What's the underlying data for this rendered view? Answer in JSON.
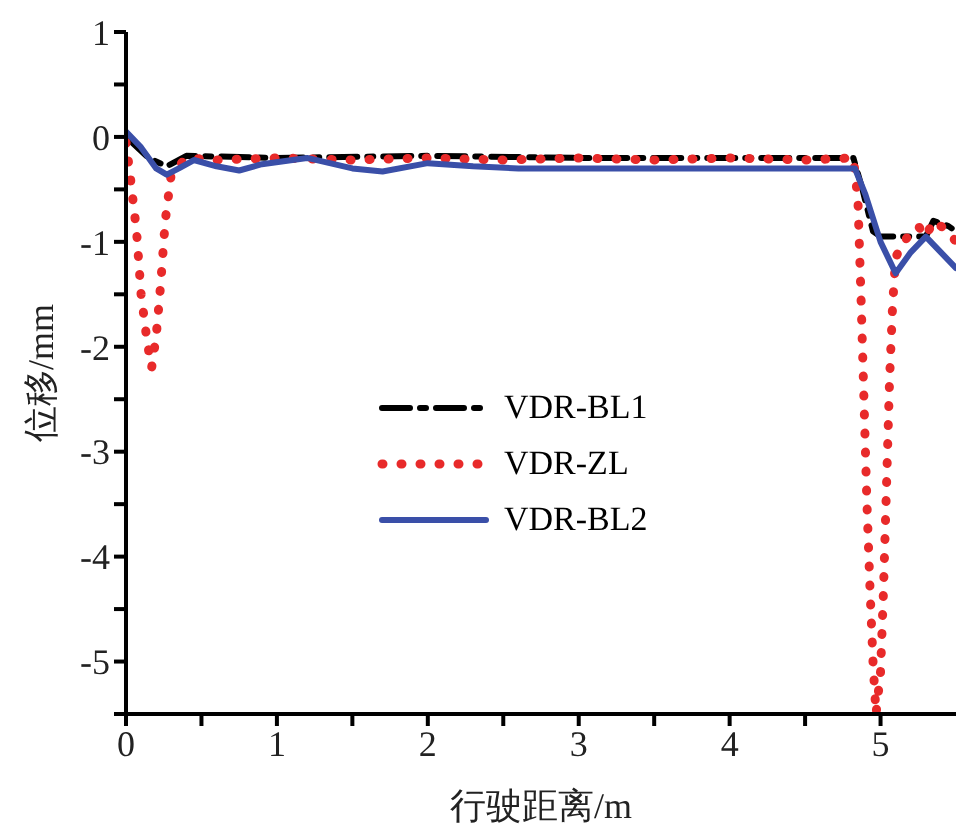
{
  "chart_data": {
    "type": "line",
    "xlabel": "行驶距离/m",
    "ylabel": "位移/mm",
    "xlim": [
      0,
      5.5
    ],
    "xticks": [
      0,
      {
        "value": 0.5,
        "label": null
      },
      1,
      {
        "value": 1.5,
        "label": null
      },
      2,
      {
        "value": 2.5,
        "label": null
      },
      3,
      {
        "value": 3.5,
        "label": null
      },
      4,
      {
        "value": 4.5,
        "label": null
      },
      5
    ],
    "ylim": [
      -5.5,
      1
    ],
    "yticks": [
      {
        "value": -5.5,
        "label": null
      },
      -5,
      {
        "value": -4.5,
        "label": null
      },
      -4,
      {
        "value": -3.5,
        "label": null
      },
      -3,
      {
        "value": -2.5,
        "label": null
      },
      -2,
      {
        "value": -1.5,
        "label": null
      },
      -1,
      {
        "value": -0.5,
        "label": null
      },
      0,
      {
        "value": 0.5,
        "label": null
      },
      1
    ],
    "grid": false,
    "legend": "center",
    "marker": "none",
    "series": [
      {
        "name": "VDR-BL1",
        "color": "#000000",
        "line_style": "dashed",
        "x": [
          0,
          0.15,
          0.27,
          0.4,
          1,
          2,
          3,
          4,
          4.82,
          4.88,
          4.95,
          5.0,
          5.3,
          5.35,
          5.45,
          5.5
        ],
        "values": [
          0,
          -0.2,
          -0.28,
          -0.18,
          -0.2,
          -0.18,
          -0.2,
          -0.2,
          -0.2,
          -0.5,
          -0.9,
          -0.95,
          -0.95,
          -0.8,
          -0.85,
          -0.9
        ]
      },
      {
        "name": "VDR-ZL",
        "color": "#e82a2a",
        "line_style": "dotted",
        "x": [
          0,
          0.03,
          0.07,
          0.1,
          0.14,
          0.17,
          0.2,
          0.23,
          0.26,
          0.3,
          0.4,
          0.6,
          1,
          1.5,
          2,
          2.5,
          3,
          3.5,
          4,
          4.5,
          4.82,
          4.85,
          4.87,
          4.89,
          4.91,
          4.93,
          4.95,
          4.97,
          5.0,
          5.02,
          5.04,
          5.06,
          5.08,
          5.1,
          5.15,
          5.25,
          5.3,
          5.35,
          5.45,
          5.5
        ],
        "values": [
          -0.05,
          -0.4,
          -0.9,
          -1.5,
          -1.95,
          -2.2,
          -1.9,
          -1.4,
          -0.8,
          -0.35,
          -0.2,
          -0.22,
          -0.2,
          -0.22,
          -0.2,
          -0.22,
          -0.2,
          -0.22,
          -0.2,
          -0.22,
          -0.2,
          -0.6,
          -1.5,
          -2.5,
          -3.5,
          -4.3,
          -5,
          -5.5,
          -5.1,
          -4.3,
          -3.3,
          -2.3,
          -1.6,
          -1.15,
          -1.0,
          -0.85,
          -0.95,
          -0.8,
          -0.9,
          -1.0
        ]
      },
      {
        "name": "VDR-BL2",
        "color": "#3a4fa8",
        "line_style": "solid",
        "x": [
          0,
          0.1,
          0.2,
          0.27,
          0.35,
          0.45,
          0.6,
          0.75,
          0.9,
          1.2,
          1.5,
          1.7,
          2,
          2.3,
          2.6,
          3,
          4,
          4.83,
          4.9,
          5.0,
          5.1,
          5.2,
          5.3,
          5.4,
          5.5
        ],
        "values": [
          0.05,
          -0.1,
          -0.3,
          -0.36,
          -0.3,
          -0.22,
          -0.28,
          -0.32,
          -0.26,
          -0.2,
          -0.3,
          -0.33,
          -0.25,
          -0.28,
          -0.3,
          -0.3,
          -0.3,
          -0.3,
          -0.55,
          -1.0,
          -1.3,
          -1.1,
          -0.95,
          -1.1,
          -1.25
        ]
      }
    ]
  }
}
